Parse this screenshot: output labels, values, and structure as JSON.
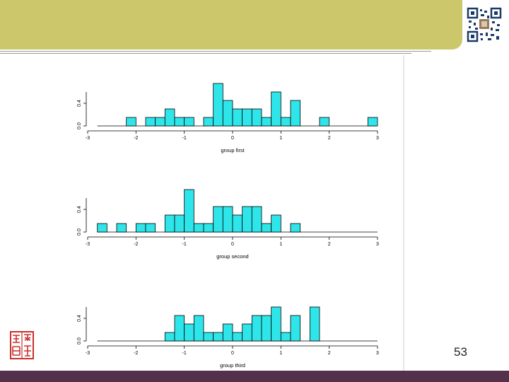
{
  "slide": {
    "page_number": "53",
    "colors": {
      "header": "#cdc76c",
      "footer": "#54304a",
      "bar_fill": "#2ee6ea"
    },
    "icons": [
      "qr-code-icon",
      "red-seal-icon"
    ]
  },
  "chart_data": [
    {
      "type": "bar",
      "xlabel": "group first",
      "xlim": [
        -3,
        3
      ],
      "ylim": [
        0,
        0.6
      ],
      "xticks": [
        "-3",
        "-2",
        "-1",
        "0",
        "1",
        "2",
        "3"
      ],
      "yticks": [
        "0.0",
        "0.4"
      ],
      "bin_width": 0.2,
      "bins": [
        [
          -2.2,
          0.15
        ],
        [
          -1.8,
          0.15
        ],
        [
          -1.6,
          0.15
        ],
        [
          -1.4,
          0.3
        ],
        [
          -1.2,
          0.15
        ],
        [
          -1.0,
          0.15
        ],
        [
          -0.6,
          0.15
        ],
        [
          -0.4,
          0.75
        ],
        [
          -0.2,
          0.45
        ],
        [
          0.0,
          0.3
        ],
        [
          0.2,
          0.3
        ],
        [
          0.4,
          0.3
        ],
        [
          0.6,
          0.15
        ],
        [
          0.8,
          0.6
        ],
        [
          1.0,
          0.15
        ],
        [
          1.2,
          0.45
        ],
        [
          1.8,
          0.15
        ],
        [
          2.8,
          0.15
        ]
      ]
    },
    {
      "type": "bar",
      "xlabel": "group second",
      "xlim": [
        -3,
        3
      ],
      "ylim": [
        0,
        0.6
      ],
      "xticks": [
        "-3",
        "-2",
        "-1",
        "0",
        "1",
        "2",
        "3"
      ],
      "yticks": [
        "0.0",
        "0.4"
      ],
      "bin_width": 0.2,
      "bins": [
        [
          -2.8,
          0.15
        ],
        [
          -2.4,
          0.15
        ],
        [
          -2.0,
          0.15
        ],
        [
          -1.8,
          0.15
        ],
        [
          -1.4,
          0.3
        ],
        [
          -1.2,
          0.3
        ],
        [
          -1.0,
          0.75
        ],
        [
          -0.8,
          0.15
        ],
        [
          -0.6,
          0.15
        ],
        [
          -0.4,
          0.45
        ],
        [
          -0.2,
          0.45
        ],
        [
          0.0,
          0.3
        ],
        [
          0.2,
          0.45
        ],
        [
          0.4,
          0.45
        ],
        [
          0.6,
          0.15
        ],
        [
          0.8,
          0.3
        ],
        [
          1.2,
          0.15
        ]
      ]
    },
    {
      "type": "bar",
      "xlabel": "group third",
      "xlim": [
        -3,
        3
      ],
      "ylim": [
        0,
        0.6
      ],
      "xticks": [
        "-3",
        "-2",
        "-1",
        "0",
        "1",
        "2",
        "3"
      ],
      "yticks": [
        "0.0",
        "0.4"
      ],
      "bin_width": 0.2,
      "bins": [
        [
          -1.4,
          0.15
        ],
        [
          -1.2,
          0.45
        ],
        [
          -1.0,
          0.3
        ],
        [
          -0.8,
          0.45
        ],
        [
          -0.6,
          0.15
        ],
        [
          -0.4,
          0.15
        ],
        [
          -0.2,
          0.3
        ],
        [
          0.0,
          0.15
        ],
        [
          0.2,
          0.3
        ],
        [
          0.4,
          0.45
        ],
        [
          0.6,
          0.45
        ],
        [
          0.8,
          0.6
        ],
        [
          1.0,
          0.15
        ],
        [
          1.2,
          0.45
        ],
        [
          1.6,
          0.6
        ]
      ]
    }
  ]
}
